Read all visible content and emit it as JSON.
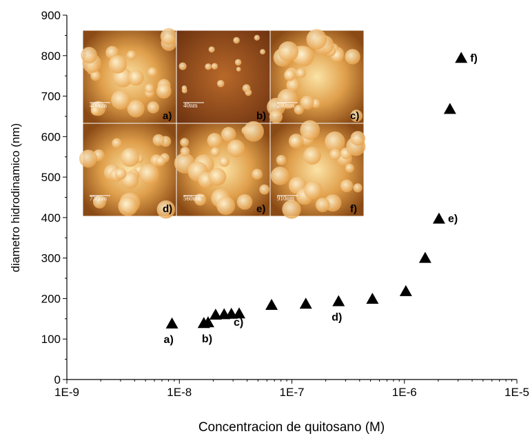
{
  "chart_data": {
    "type": "scatter",
    "x_label": "Concentracion de quitosano (M)",
    "y_label": "diametro hidrodinamico (nm)",
    "x_scale": "log",
    "xlim": [
      1e-09,
      1e-05
    ],
    "xticks": [
      {
        "value": 1e-09,
        "label": "1E-9"
      },
      {
        "value": 1e-08,
        "label": "1E-8"
      },
      {
        "value": 1e-07,
        "label": "1E-7"
      },
      {
        "value": 1e-06,
        "label": "1E-6"
      },
      {
        "value": 1e-05,
        "label": "1E-5"
      }
    ],
    "ylim": [
      0,
      900
    ],
    "yticks": [
      0,
      100,
      200,
      300,
      400,
      500,
      600,
      700,
      800,
      900
    ],
    "color": "#000000",
    "x": [
      8.6e-09,
      1.65e-08,
      1.8e-08,
      2.1e-08,
      2.5e-08,
      2.9e-08,
      3.4e-08,
      6.6e-08,
      1.33e-07,
      2.6e-07,
      5.2e-07,
      1.03e-06,
      1.53e-06,
      2.03e-06,
      2.54e-06,
      3.2e-06
    ],
    "values": [
      138,
      139,
      141,
      160,
      161,
      162,
      163,
      184,
      187,
      193,
      199,
      218,
      300,
      397,
      668,
      794
    ],
    "annotations": [
      "a)",
      "b)",
      "c)",
      "d)",
      "e)",
      "f)"
    ],
    "insets": [
      {
        "label": "a)",
        "scale": "400nm"
      },
      {
        "label": "b)",
        "scale": "40nm"
      },
      {
        "label": "c)",
        "scale": "280nm"
      },
      {
        "label": "d)",
        "scale": "730nm"
      },
      {
        "label": "e)",
        "scale": "560nm"
      },
      {
        "label": "f)",
        "scale": "910nm"
      }
    ]
  }
}
